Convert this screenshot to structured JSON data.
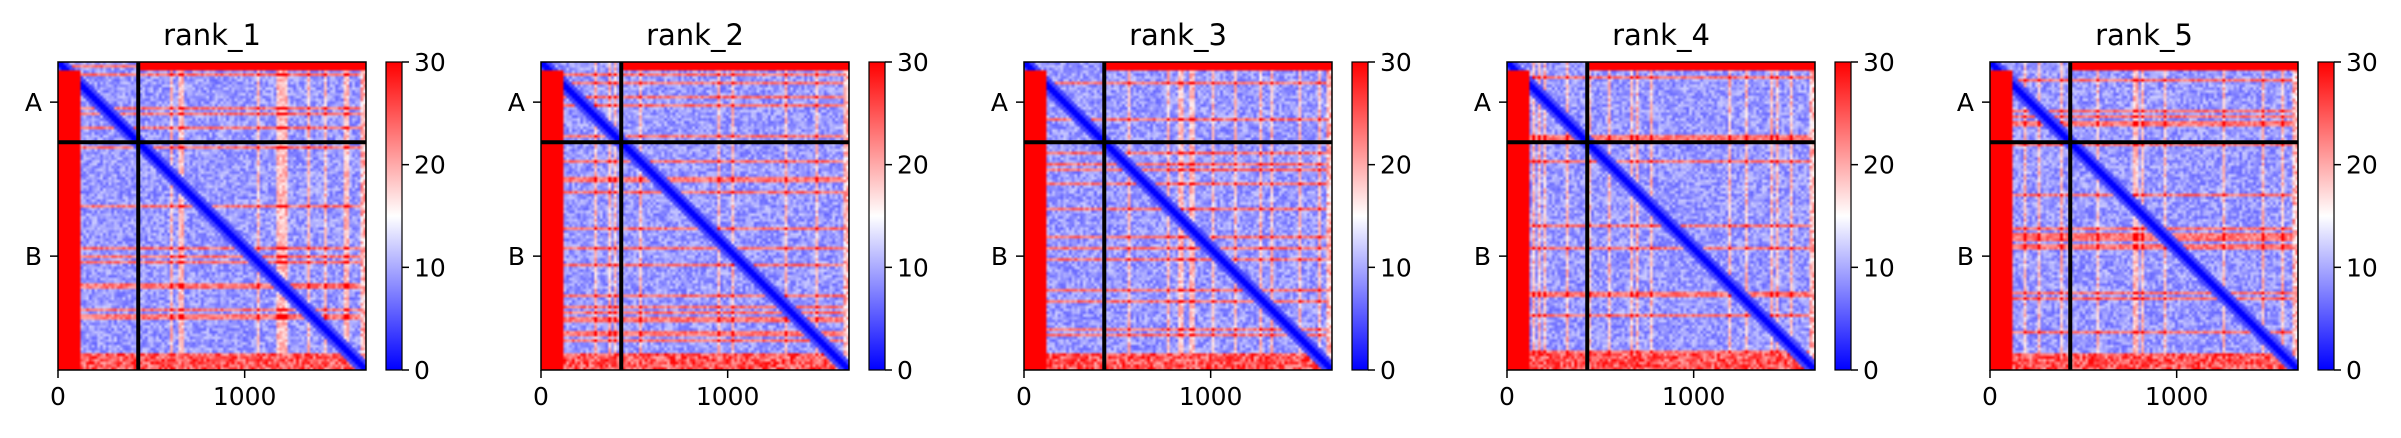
{
  "chart_data": [
    {
      "type": "heatmap",
      "title": "rank_1",
      "xlabel": "",
      "ylabel": "",
      "xlim": [
        0,
        1650
      ],
      "x_ticks": [
        "0",
        "1000"
      ],
      "y_tick_labels": [
        "A",
        "B"
      ],
      "chain_boundary": 430,
      "colorbar": {
        "min": 0,
        "max": 30,
        "ticks": [
          "0",
          "10",
          "20",
          "30"
        ],
        "colormap": "bwr"
      },
      "colors": {
        "low": "#0000ff",
        "mid": "#ffffff",
        "high": "#ff0000"
      }
    },
    {
      "type": "heatmap",
      "title": "rank_2",
      "xlabel": "",
      "ylabel": "",
      "xlim": [
        0,
        1650
      ],
      "x_ticks": [
        "0",
        "1000"
      ],
      "y_tick_labels": [
        "A",
        "B"
      ],
      "chain_boundary": 430,
      "colorbar": {
        "min": 0,
        "max": 30,
        "ticks": [
          "0",
          "10",
          "20",
          "30"
        ],
        "colormap": "bwr"
      },
      "colors": {
        "low": "#0000ff",
        "mid": "#ffffff",
        "high": "#ff0000"
      }
    },
    {
      "type": "heatmap",
      "title": "rank_3",
      "xlabel": "",
      "ylabel": "",
      "xlim": [
        0,
        1650
      ],
      "x_ticks": [
        "0",
        "1000"
      ],
      "y_tick_labels": [
        "A",
        "B"
      ],
      "chain_boundary": 430,
      "colorbar": {
        "min": 0,
        "max": 30,
        "ticks": [
          "0",
          "10",
          "20",
          "30"
        ],
        "colormap": "bwr"
      },
      "colors": {
        "low": "#0000ff",
        "mid": "#ffffff",
        "high": "#ff0000"
      }
    },
    {
      "type": "heatmap",
      "title": "rank_4",
      "xlabel": "",
      "ylabel": "",
      "xlim": [
        0,
        1650
      ],
      "x_ticks": [
        "0",
        "1000"
      ],
      "y_tick_labels": [
        "A",
        "B"
      ],
      "chain_boundary": 430,
      "colorbar": {
        "min": 0,
        "max": 30,
        "ticks": [
          "0",
          "10",
          "20",
          "30"
        ],
        "colormap": "bwr"
      },
      "colors": {
        "low": "#0000ff",
        "mid": "#ffffff",
        "high": "#ff0000"
      }
    },
    {
      "type": "heatmap",
      "title": "rank_5",
      "xlabel": "",
      "ylabel": "",
      "xlim": [
        0,
        1650
      ],
      "x_ticks": [
        "0",
        "1000"
      ],
      "y_tick_labels": [
        "A",
        "B"
      ],
      "chain_boundary": 430,
      "colorbar": {
        "min": 0,
        "max": 30,
        "ticks": [
          "0",
          "10",
          "20",
          "30"
        ],
        "colormap": "bwr"
      },
      "colors": {
        "low": "#0000ff",
        "mid": "#ffffff",
        "high": "#ff0000"
      }
    }
  ]
}
